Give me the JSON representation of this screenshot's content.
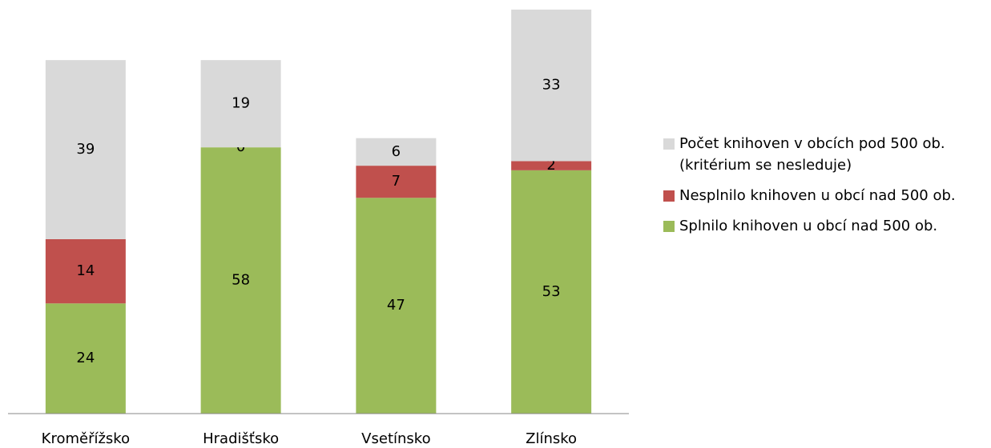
{
  "chart_data": {
    "type": "stacked_bar",
    "categories": [
      "Kroměřížsko",
      "Hradišťsko",
      "Vsetínsko",
      "Zlínsko"
    ],
    "series": [
      {
        "name": "Splnilo knihoven u obcí nad 500 ob.",
        "color": "#9bbb59",
        "values": [
          24,
          58,
          47,
          53
        ]
      },
      {
        "name": "Nesplnilo knihoven u obcí nad 500 ob.",
        "color": "#c0504d",
        "values": [
          14,
          0,
          7,
          2
        ]
      },
      {
        "name": "Počet knihoven v obcích pod 500 ob. (kritérium se nesleduje)",
        "color": "#d9d9d9",
        "values": [
          39,
          19,
          6,
          33
        ]
      }
    ],
    "legend": "right"
  }
}
